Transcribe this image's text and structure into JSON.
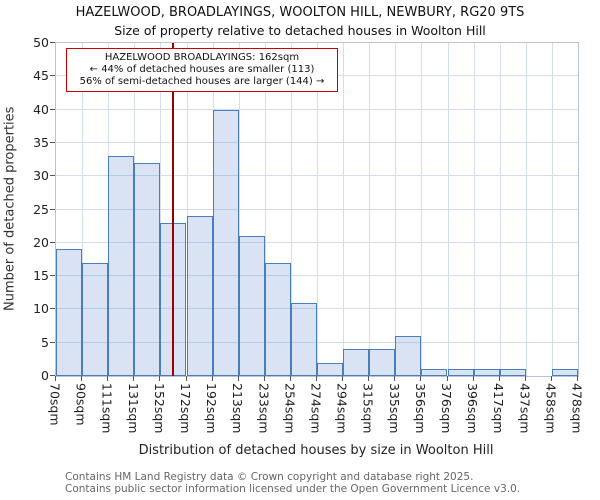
{
  "title": "HAZELWOOD, BROADLAYINGS, WOOLTON HILL, NEWBURY, RG20 9TS",
  "subtitle": "Size of property relative to detached houses in Woolton Hill",
  "chart_data": {
    "type": "bar",
    "categories": [
      "70sqm",
      "90sqm",
      "111sqm",
      "131sqm",
      "152sqm",
      "172sqm",
      "192sqm",
      "213sqm",
      "233sqm",
      "254sqm",
      "274sqm",
      "294sqm",
      "315sqm",
      "335sqm",
      "356sqm",
      "376sqm",
      "396sqm",
      "417sqm",
      "437sqm",
      "458sqm",
      "478sqm"
    ],
    "values": [
      19,
      17,
      33,
      32,
      23,
      24,
      40,
      21,
      17,
      11,
      2,
      4,
      4,
      6,
      1,
      1,
      1,
      1,
      0,
      1
    ],
    "title": "HAZELWOOD, BROADLAYINGS, WOOLTON HILL, NEWBURY, RG20 9TS",
    "xlabel": "Distribution of detached houses by size in Woolton Hill",
    "ylabel": "Number of detached properties",
    "ylim": [
      0,
      50
    ],
    "ytick_step": 5,
    "grid": true,
    "bar_color": "rgba(120,155,215,0.28)",
    "bar_border": "#4a7ebb",
    "grid_color": "#d3ddef",
    "marker_value": "162sqm",
    "marker_fraction": 0.225,
    "marker_color": "#990000"
  },
  "annotation": {
    "line1": "HAZELWOOD BROADLAYINGS: 162sqm",
    "line2": "← 44% of detached houses are smaller (113)",
    "line3": "56% of semi-detached houses are larger (144) →",
    "border_color": "#cc0000"
  },
  "footer": {
    "line1": "Contains HM Land Registry data © Crown copyright and database right 2025.",
    "line2": "Contains public sector information licensed under the Open Government Licence v3.0."
  }
}
